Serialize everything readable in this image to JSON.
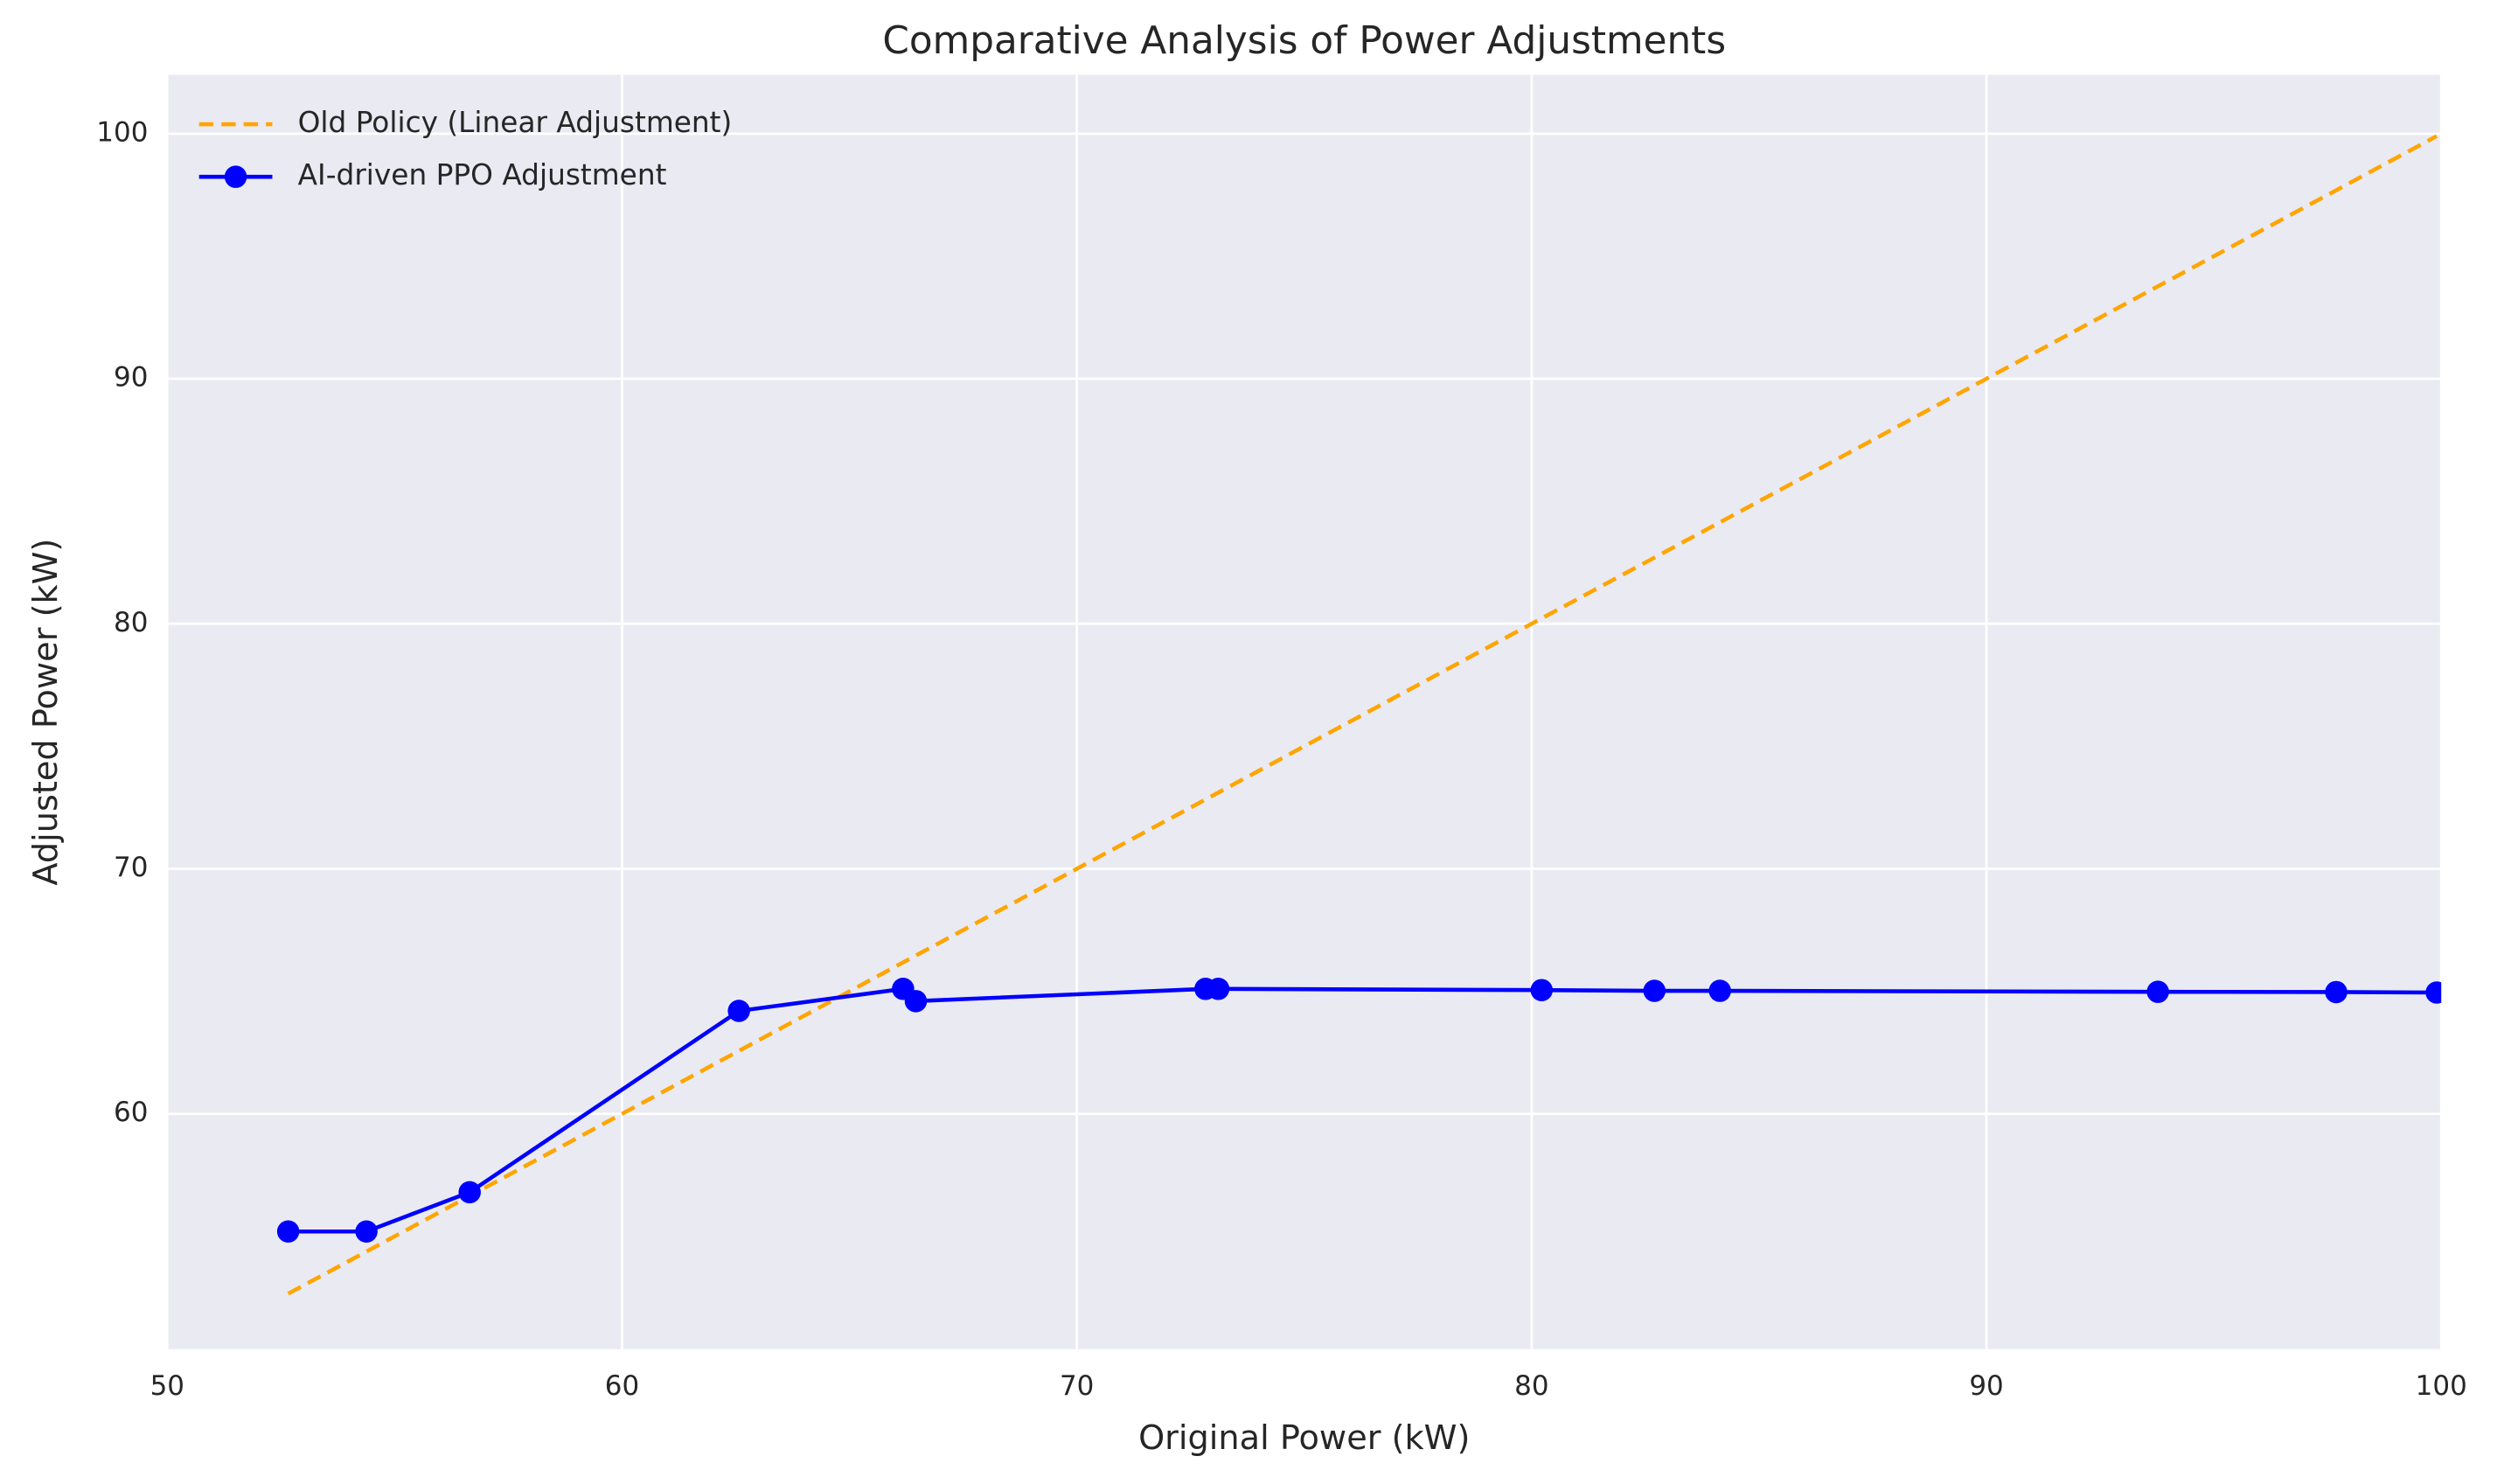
{
  "chart_data": {
    "type": "line",
    "title": "Comparative Analysis of Power Adjustments",
    "x_label": "Original Power (kW)",
    "y_label": "Adjusted Power (kW)",
    "xlim": [
      50,
      100
    ],
    "ylim": [
      50.4,
      102.4
    ],
    "xticks": [
      50,
      60,
      70,
      80,
      90,
      100
    ],
    "yticks": [
      60,
      70,
      80,
      90,
      100
    ],
    "grid": true,
    "legend_position": "upper-left",
    "series": [
      {
        "name": "Old Policy (Linear Adjustment)",
        "color": "#ffa500",
        "style": "dashed",
        "markers": false,
        "x": [
          52.66,
          99.9
        ],
        "values": [
          52.66,
          99.9
        ]
      },
      {
        "name": "AI-driven PPO Adjustment",
        "color": "#0000ff",
        "style": "solid",
        "markers": true,
        "x": [
          52.66,
          54.38,
          56.65,
          62.57,
          66.18,
          66.46,
          72.83,
          73.11,
          80.22,
          82.7,
          84.14,
          93.77,
          97.69,
          99.9
        ],
        "values": [
          55.2,
          55.2,
          56.8,
          64.2,
          65.1,
          64.6,
          65.1,
          65.1,
          65.05,
          65.02,
          65.02,
          64.98,
          64.97,
          64.95
        ]
      }
    ]
  }
}
